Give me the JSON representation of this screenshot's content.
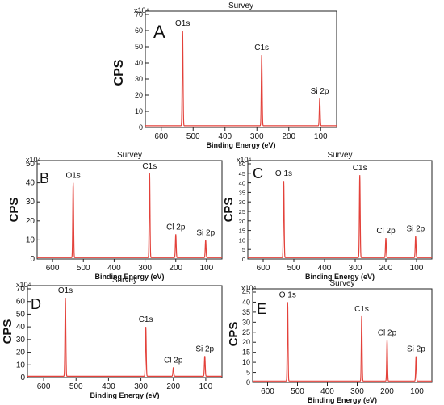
{
  "colors": {
    "line": "#e3413a",
    "axis": "#222222"
  },
  "chart_data": [
    {
      "panel_label": "A",
      "type": "line",
      "title": "Survey",
      "xlabel": "Binding Energy (eV)",
      "ylabel": "CPS",
      "multiplier": "x10⁴",
      "xlim": [
        650,
        50
      ],
      "ylim": [
        0,
        70
      ],
      "xticks": [
        600,
        500,
        400,
        300,
        200,
        100
      ],
      "yticks": [
        0,
        10,
        20,
        30,
        40,
        50,
        60,
        70
      ],
      "peaks": [
        {
          "label": "O1s",
          "x": 533,
          "y": 60
        },
        {
          "label": "C1s",
          "x": 285,
          "y": 45
        },
        {
          "label": "Si 2p",
          "x": 103,
          "y": 18
        }
      ]
    },
    {
      "panel_label": "B",
      "type": "line",
      "title": "Survey",
      "xlabel": "Binding Energy (eV)",
      "ylabel": "CPS",
      "multiplier": "x10⁴",
      "xlim": [
        650,
        50
      ],
      "ylim": [
        0,
        50
      ],
      "xticks": [
        600,
        500,
        400,
        300,
        200,
        100
      ],
      "yticks": [
        0,
        10,
        20,
        30,
        40,
        50
      ],
      "peaks": [
        {
          "label": "O1s",
          "x": 533,
          "y": 40
        },
        {
          "label": "C1s",
          "x": 285,
          "y": 45
        },
        {
          "label": "Cl 2p",
          "x": 200,
          "y": 13
        },
        {
          "label": "Si 2p",
          "x": 103,
          "y": 10
        }
      ]
    },
    {
      "panel_label": "C",
      "type": "line",
      "title": "Survey",
      "xlabel": "Binding Energy (eV)",
      "ylabel": "CPS",
      "multiplier": "x10⁴",
      "xlim": [
        650,
        50
      ],
      "ylim": [
        0,
        50
      ],
      "xticks": [
        600,
        500,
        400,
        300,
        200,
        100
      ],
      "yticks": [
        0,
        5,
        10,
        15,
        20,
        25,
        30,
        35,
        40,
        45,
        50
      ],
      "peaks": [
        {
          "label": "O 1s",
          "x": 533,
          "y": 41
        },
        {
          "label": "C1s",
          "x": 285,
          "y": 44
        },
        {
          "label": "Cl 2p",
          "x": 200,
          "y": 11
        },
        {
          "label": "Si 2p",
          "x": 103,
          "y": 12
        }
      ]
    },
    {
      "panel_label": "D",
      "type": "line",
      "title": "Survey",
      "xlabel": "Binding Energy (eV)",
      "ylabel": "CPS",
      "multiplier": "x10⁴",
      "xlim": [
        650,
        50
      ],
      "ylim": [
        0,
        70
      ],
      "xticks": [
        600,
        500,
        400,
        300,
        200,
        100
      ],
      "yticks": [
        0,
        10,
        20,
        30,
        40,
        50,
        60,
        70
      ],
      "peaks": [
        {
          "label": "O1s",
          "x": 533,
          "y": 63
        },
        {
          "label": "C1s",
          "x": 285,
          "y": 40
        },
        {
          "label": "Cl 2p",
          "x": 200,
          "y": 8
        },
        {
          "label": "Si 2p",
          "x": 103,
          "y": 17
        }
      ]
    },
    {
      "panel_label": "E",
      "type": "line",
      "title": "Survey",
      "xlabel": "Binding Energy (eV)",
      "ylabel": "CPS",
      "multiplier": "x10⁴",
      "xlim": [
        650,
        50
      ],
      "ylim": [
        0,
        45
      ],
      "xticks": [
        600,
        500,
        400,
        300,
        200,
        100
      ],
      "yticks": [
        0,
        5,
        10,
        15,
        20,
        25,
        30,
        35,
        40,
        45
      ],
      "peaks": [
        {
          "label": "O 1s",
          "x": 533,
          "y": 40
        },
        {
          "label": "C1s",
          "x": 285,
          "y": 33
        },
        {
          "label": "Cl 2p",
          "x": 200,
          "y": 21
        },
        {
          "label": "Si 2p",
          "x": 103,
          "y": 13
        }
      ]
    }
  ]
}
